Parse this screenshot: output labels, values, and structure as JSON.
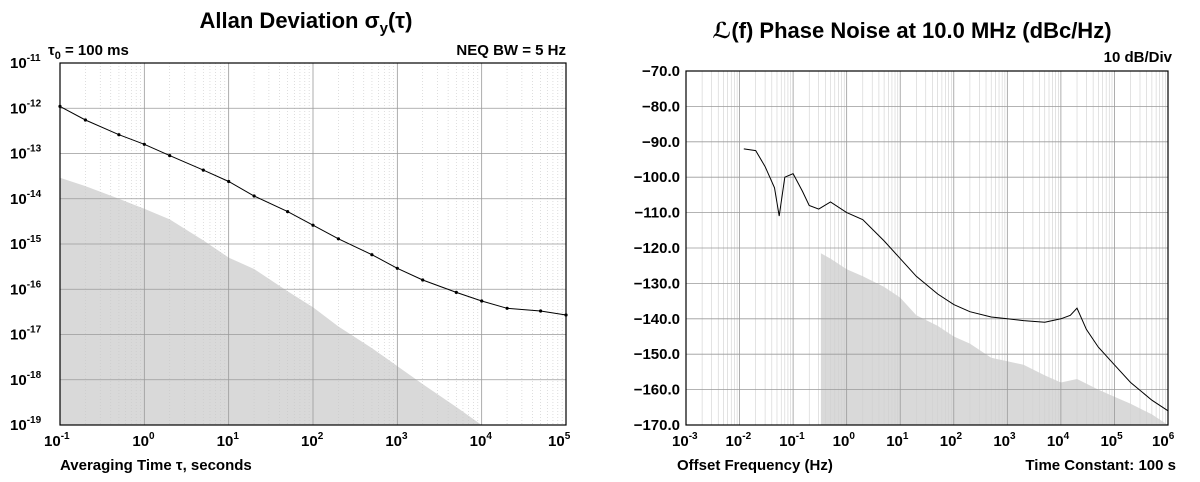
{
  "chart_data": [
    {
      "type": "line",
      "title": "Allan Deviation σy(τ)",
      "title_main": "Allan Deviation ",
      "title_sigma": "σ",
      "title_sub": "y",
      "title_tau": "(τ)",
      "annotation_left": "τ0 = 100 ms",
      "annotation_left_main": "τ",
      "annotation_left_sub": "0",
      "annotation_left_rest": " = 100 ms",
      "annotation_right": "NEQ BW = 5 Hz",
      "xlabel": "Averaging Time τ, seconds",
      "ylabel": "",
      "x_scale": "log",
      "y_scale": "log",
      "xlim": [
        0.1,
        100000
      ],
      "ylim": [
        1e-19,
        1e-11
      ],
      "x_ticks": [
        0.1,
        1,
        10,
        100,
        1000,
        10000,
        100000
      ],
      "x_tick_labels": [
        [
          "10",
          "-1"
        ],
        [
          "10",
          "0"
        ],
        [
          "10",
          "1"
        ],
        [
          "10",
          "2"
        ],
        [
          "10",
          "3"
        ],
        [
          "10",
          "4"
        ],
        [
          "10",
          "5"
        ]
      ],
      "y_ticks": [
        1e-11,
        1e-12,
        1e-13,
        1e-14,
        1e-15,
        1e-16,
        1e-17,
        1e-18,
        1e-19
      ],
      "y_tick_labels": [
        [
          "10",
          "-11"
        ],
        [
          "10",
          "-12"
        ],
        [
          "10",
          "-13"
        ],
        [
          "10",
          "-14"
        ],
        [
          "10",
          "-15"
        ],
        [
          "10",
          "-16"
        ],
        [
          "10",
          "-17"
        ],
        [
          "10",
          "-18"
        ],
        [
          "10",
          "-19"
        ]
      ],
      "grid": true,
      "series": [
        {
          "x": [
            0.1,
            0.2,
            0.5,
            1,
            2,
            5,
            10,
            20,
            50,
            100,
            200,
            500,
            1000,
            2000,
            5000,
            10000,
            20000,
            50000,
            100000
          ],
          "y": [
            1.1e-12,
            5.5e-13,
            2.6e-13,
            1.6e-13,
            9e-14,
            4.3e-14,
            2.4e-14,
            1.15e-14,
            5.2e-15,
            2.6e-15,
            1.3e-15,
            5.8e-16,
            2.9e-16,
            1.6e-16,
            8.5e-17,
            5.5e-17,
            3.8e-17,
            3.3e-17,
            2.7e-17
          ]
        }
      ],
      "noise_floor": {
        "x": [
          0.1,
          0.2,
          0.5,
          1,
          2,
          5,
          10,
          20,
          50,
          100,
          200,
          500,
          1000,
          2000,
          5000,
          10000
        ],
        "y": [
          2.9e-14,
          1.9e-14,
          1e-14,
          6e-15,
          3.5e-15,
          1.2e-15,
          5e-16,
          2.8e-16,
          9e-17,
          4e-17,
          1.5e-17,
          5e-18,
          2e-18,
          8e-19,
          2.5e-19,
          1e-19
        ]
      }
    },
    {
      "type": "line",
      "title": "ℒ(f) Phase Noise at 10.0 MHz (dBc/Hz)",
      "annotation_right": "10 dB/Div",
      "xlabel": "Offset Frequency (Hz)",
      "annotation_bottom_right": "Time Constant: 100 s",
      "ylabel": "",
      "x_scale": "log",
      "xlim": [
        0.001,
        1000000
      ],
      "ylim": [
        -170,
        -70
      ],
      "x_ticks": [
        0.001,
        0.01,
        0.1,
        1,
        10,
        100,
        1000,
        10000,
        100000,
        1000000
      ],
      "x_tick_labels": [
        [
          "10",
          "-3"
        ],
        [
          "10",
          "-2"
        ],
        [
          "10",
          "-1"
        ],
        [
          "10",
          "0"
        ],
        [
          "10",
          "1"
        ],
        [
          "10",
          "2"
        ],
        [
          "10",
          "3"
        ],
        [
          "10",
          "4"
        ],
        [
          "10",
          "5"
        ],
        [
          "10",
          "6"
        ]
      ],
      "y_ticks": [
        -70,
        -80,
        -90,
        -100,
        -110,
        -120,
        -130,
        -140,
        -150,
        -160,
        -170
      ],
      "y_tick_labels": [
        "−70.0",
        "−80.0",
        "−90.0",
        "−100.0",
        "−110.0",
        "−120.0",
        "−130.0",
        "−140.0",
        "−150.0",
        "−160.0",
        "−170.0"
      ],
      "grid": true,
      "series": [
        {
          "x": [
            0.012,
            0.02,
            0.03,
            0.045,
            0.055,
            0.07,
            0.1,
            0.15,
            0.2,
            0.3,
            0.5,
            1,
            2,
            5,
            10,
            20,
            50,
            100,
            200,
            500,
            1000,
            2000,
            5000,
            10000,
            15000,
            20000,
            30000,
            50000,
            100000,
            200000,
            500000,
            1000000
          ],
          "y": [
            -92,
            -92.5,
            -97,
            -103,
            -111,
            -100,
            -99,
            -104,
            -108,
            -109,
            -107,
            -110,
            -112,
            -118,
            -123,
            -128,
            -133,
            -136,
            -138,
            -139.5,
            -140,
            -140.5,
            -141,
            -140,
            -139,
            -137,
            -143,
            -148,
            -153,
            -158,
            -163,
            -166
          ]
        }
      ],
      "noise_floor": {
        "x": [
          0.33,
          0.5,
          1,
          2,
          5,
          10,
          20,
          50,
          100,
          200,
          500,
          1000,
          2000,
          5000,
          10000,
          20000,
          50000,
          100000,
          200000,
          500000,
          1000000
        ],
        "y": [
          -121.5,
          -123,
          -126,
          -128,
          -131,
          -134,
          -139,
          -142,
          -145,
          -147,
          -151,
          -152,
          -153,
          -156,
          -158,
          -157,
          -160,
          -162,
          -164,
          -167,
          -170
        ]
      }
    }
  ]
}
